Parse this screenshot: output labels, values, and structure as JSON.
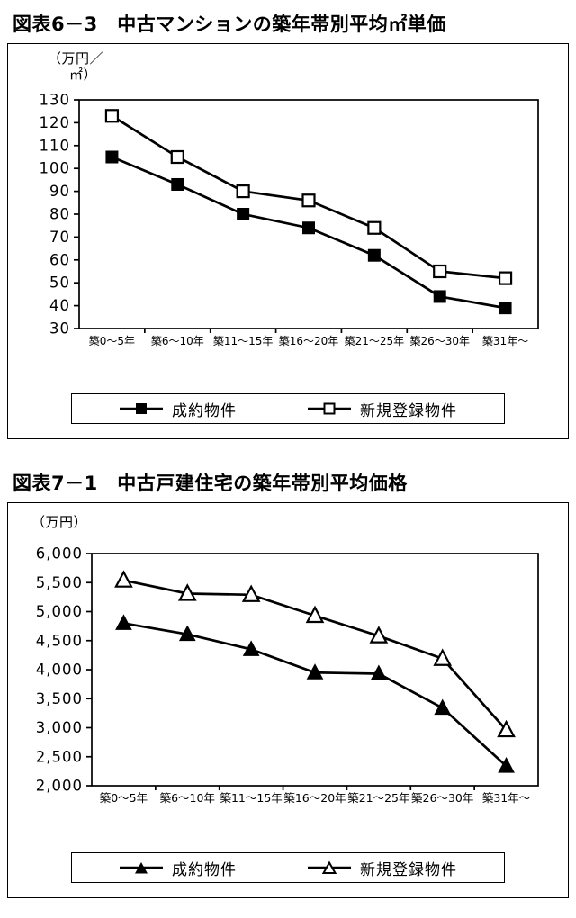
{
  "chart_data": [
    {
      "id": "fig6-3",
      "type": "line",
      "title": "図表6－3　中古マンションの築年帯別平均㎡単価",
      "unit_label_lines": [
        "（万円／",
        "㎡）"
      ],
      "categories": [
        "築0～5年",
        "築6～10年",
        "築11～15年",
        "築16～20年",
        "築21～25年",
        "築26～30年",
        "築31年～"
      ],
      "series": [
        {
          "name": "成約物件",
          "marker": "filled-square",
          "color": "#000000",
          "values": [
            105,
            93,
            80,
            74,
            62,
            44,
            39
          ]
        },
        {
          "name": "新規登録物件",
          "marker": "open-square",
          "color": "#000000",
          "values": [
            123,
            105,
            90,
            86,
            74,
            55,
            52
          ]
        }
      ],
      "ylim": [
        30,
        130
      ],
      "ytick_step": 10,
      "ytick_labels": [
        "130",
        "120",
        "110",
        "100",
        "90",
        "80",
        "70",
        "60",
        "50",
        "40",
        "30"
      ],
      "grid": false,
      "legend_position": "bottom",
      "line_color": "#000000"
    },
    {
      "id": "fig7-1",
      "type": "line",
      "title": "図表7－1　中古戸建住宅の築年帯別平均価格",
      "unit_label_lines": [
        "（万円）"
      ],
      "categories": [
        "築0～5年",
        "築6～10年",
        "築11～15年",
        "築16～20年",
        "築21～25年",
        "築26～30年",
        "築31年～"
      ],
      "series": [
        {
          "name": "成約物件",
          "marker": "filled-triangle",
          "color": "#000000",
          "values": [
            4800,
            4610,
            4350,
            3950,
            3930,
            3340,
            2340
          ]
        },
        {
          "name": "新規登録物件",
          "marker": "open-triangle",
          "color": "#000000",
          "values": [
            5540,
            5310,
            5290,
            4930,
            4580,
            4190,
            2960
          ]
        }
      ],
      "ylim": [
        2000,
        6000
      ],
      "ytick_step": 500,
      "ytick_labels": [
        "6,000",
        "5,500",
        "5,000",
        "4,500",
        "4,000",
        "3,500",
        "3,000",
        "2,500",
        "2,000"
      ],
      "grid": false,
      "legend_position": "bottom",
      "line_color": "#000000"
    }
  ]
}
